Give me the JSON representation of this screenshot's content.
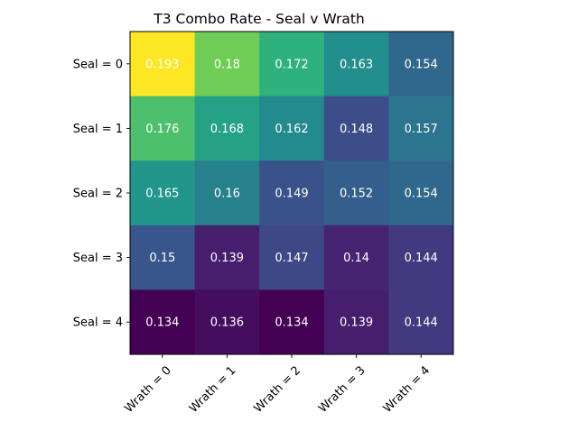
{
  "chart_data": {
    "type": "heatmap",
    "title": "T3 Combo Rate - Seal v Wrath",
    "xlabel": "",
    "ylabel": "",
    "x_categories": [
      "Wrath = 0",
      "Wrath = 1",
      "Wrath = 2",
      "Wrath = 3",
      "Wrath = 4"
    ],
    "y_categories": [
      "Seal = 0",
      "Seal = 1",
      "Seal = 2",
      "Seal = 3",
      "Seal = 4"
    ],
    "values": [
      [
        0.193,
        0.18,
        0.172,
        0.163,
        0.154
      ],
      [
        0.176,
        0.168,
        0.162,
        0.148,
        0.157
      ],
      [
        0.165,
        0.16,
        0.149,
        0.152,
        0.154
      ],
      [
        0.15,
        0.139,
        0.147,
        0.14,
        0.144
      ],
      [
        0.134,
        0.136,
        0.134,
        0.139,
        0.144
      ]
    ],
    "value_labels": [
      [
        "0.193",
        "0.18",
        "0.172",
        "0.163",
        "0.154"
      ],
      [
        "0.176",
        "0.168",
        "0.162",
        "0.148",
        "0.157"
      ],
      [
        "0.165",
        "0.16",
        "0.149",
        "0.152",
        "0.154"
      ],
      [
        "0.15",
        "0.139",
        "0.147",
        "0.14",
        "0.144"
      ],
      [
        "0.134",
        "0.136",
        "0.134",
        "0.139",
        "0.144"
      ]
    ],
    "colormap": "viridis",
    "colorbar": false,
    "grid": false,
    "legend": "none"
  }
}
